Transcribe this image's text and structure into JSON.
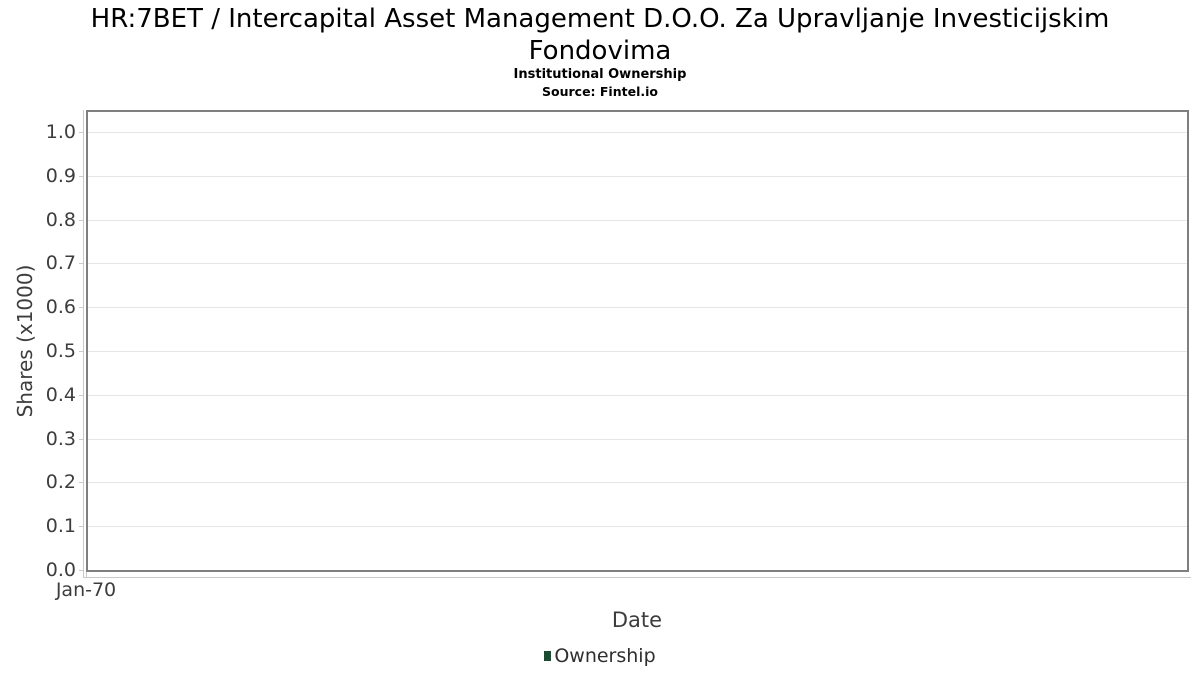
{
  "chart_data": {
    "type": "line",
    "title": "HR:7BET / Intercapital Asset Management D.O.O. Za Upravljanje Investicijskim Fondovima",
    "subtitle": "Institutional Ownership",
    "source": "Source: Fintel.io",
    "xlabel": "Date",
    "ylabel": "Shares (x1000)",
    "xticks": [
      "Jan-70"
    ],
    "yticks": [
      0.0,
      0.1,
      0.2,
      0.3,
      0.4,
      0.5,
      0.6,
      0.7,
      0.8,
      0.9,
      1.0
    ],
    "ytick_decimals": 1,
    "ylim": [
      0,
      1.05
    ],
    "grid": true,
    "legend_position": "bottom",
    "legend": [
      {
        "label": "Ownership",
        "color": "#1d4a32"
      }
    ],
    "series": [
      {
        "name": "Ownership",
        "x": [],
        "y": []
      }
    ]
  },
  "colors": {
    "plot_border": "#7f7f7f",
    "axis_line": "#c9c9c9",
    "gridline": "#e6e6e6",
    "tick_text": "#3d3d3d",
    "title_text": "#000000",
    "legend_text": "#2f2f2f",
    "background": "#ffffff"
  }
}
